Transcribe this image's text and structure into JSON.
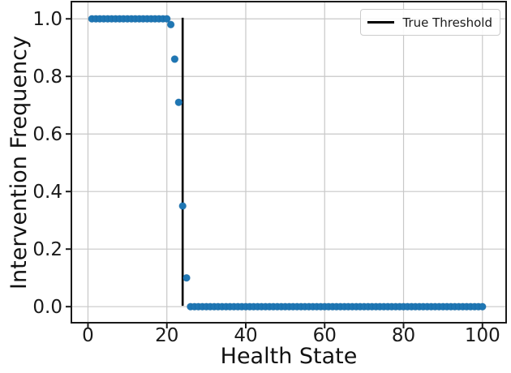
{
  "chart_data": {
    "type": "scatter",
    "title": "",
    "xlabel": "Health State",
    "ylabel": "Intervention Frequency",
    "xlim": [
      -4,
      105.8
    ],
    "ylim": [
      -0.053,
      1.057
    ],
    "x_ticks": [
      0,
      20,
      40,
      60,
      80,
      100
    ],
    "x_tick_labels": [
      "0",
      "20",
      "40",
      "60",
      "80",
      "100"
    ],
    "y_ticks": [
      0.0,
      0.2,
      0.4,
      0.6,
      0.8,
      1.0
    ],
    "y_tick_labels": [
      "0.0",
      "0.2",
      "0.4",
      "0.6",
      "0.8",
      "1.0"
    ],
    "grid": true,
    "legend": {
      "position": "upper right",
      "entries": [
        {
          "label": "True Threshold",
          "type": "line",
          "color": "#000000"
        }
      ]
    },
    "threshold_line": {
      "x": 24,
      "y_span": [
        0.003,
        1.004
      ],
      "color": "#000000"
    },
    "series": [
      {
        "name": "intervention-frequency",
        "type": "scatter",
        "color": "#1f77b4",
        "edge_color": "#14639f",
        "points": [
          [
            1,
            1.0
          ],
          [
            2,
            1.0
          ],
          [
            3,
            1.0
          ],
          [
            4,
            1.0
          ],
          [
            5,
            1.0
          ],
          [
            6,
            1.0
          ],
          [
            7,
            1.0
          ],
          [
            8,
            1.0
          ],
          [
            9,
            1.0
          ],
          [
            10,
            1.0
          ],
          [
            11,
            1.0
          ],
          [
            12,
            1.0
          ],
          [
            13,
            1.0
          ],
          [
            14,
            1.0
          ],
          [
            15,
            1.0
          ],
          [
            16,
            1.0
          ],
          [
            17,
            1.0
          ],
          [
            18,
            1.0
          ],
          [
            19,
            1.0
          ],
          [
            20,
            1.0
          ],
          [
            21,
            0.98
          ],
          [
            22,
            0.86
          ],
          [
            23,
            0.71
          ],
          [
            24,
            0.35
          ],
          [
            25,
            0.1
          ],
          [
            26,
            0.0
          ],
          [
            27,
            0.0
          ],
          [
            28,
            0.0
          ],
          [
            29,
            0.0
          ],
          [
            30,
            0.0
          ],
          [
            31,
            0.0
          ],
          [
            32,
            0.0
          ],
          [
            33,
            0.0
          ],
          [
            34,
            0.0
          ],
          [
            35,
            0.0
          ],
          [
            36,
            0.0
          ],
          [
            37,
            0.0
          ],
          [
            38,
            0.0
          ],
          [
            39,
            0.0
          ],
          [
            40,
            0.0
          ],
          [
            41,
            0.0
          ],
          [
            42,
            0.0
          ],
          [
            43,
            0.0
          ],
          [
            44,
            0.0
          ],
          [
            45,
            0.0
          ],
          [
            46,
            0.0
          ],
          [
            47,
            0.0
          ],
          [
            48,
            0.0
          ],
          [
            49,
            0.0
          ],
          [
            50,
            0.0
          ],
          [
            51,
            0.0
          ],
          [
            52,
            0.0
          ],
          [
            53,
            0.0
          ],
          [
            54,
            0.0
          ],
          [
            55,
            0.0
          ],
          [
            56,
            0.0
          ],
          [
            57,
            0.0
          ],
          [
            58,
            0.0
          ],
          [
            59,
            0.0
          ],
          [
            60,
            0.0
          ],
          [
            61,
            0.0
          ],
          [
            62,
            0.0
          ],
          [
            63,
            0.0
          ],
          [
            64,
            0.0
          ],
          [
            65,
            0.0
          ],
          [
            66,
            0.0
          ],
          [
            67,
            0.0
          ],
          [
            68,
            0.0
          ],
          [
            69,
            0.0
          ],
          [
            70,
            0.0
          ],
          [
            71,
            0.0
          ],
          [
            72,
            0.0
          ],
          [
            73,
            0.0
          ],
          [
            74,
            0.0
          ],
          [
            75,
            0.0
          ],
          [
            76,
            0.0
          ],
          [
            77,
            0.0
          ],
          [
            78,
            0.0
          ],
          [
            79,
            0.0
          ],
          [
            80,
            0.0
          ],
          [
            81,
            0.0
          ],
          [
            82,
            0.0
          ],
          [
            83,
            0.0
          ],
          [
            84,
            0.0
          ],
          [
            85,
            0.0
          ],
          [
            86,
            0.0
          ],
          [
            87,
            0.0
          ],
          [
            88,
            0.0
          ],
          [
            89,
            0.0
          ],
          [
            90,
            0.0
          ],
          [
            91,
            0.0
          ],
          [
            92,
            0.0
          ],
          [
            93,
            0.0
          ],
          [
            94,
            0.0
          ],
          [
            95,
            0.0
          ],
          [
            96,
            0.0
          ],
          [
            97,
            0.0
          ],
          [
            98,
            0.0
          ],
          [
            99,
            0.0
          ],
          [
            100,
            0.0
          ]
        ]
      }
    ],
    "style": {
      "grid_color": "#c8c8c8",
      "spine_color": "#1a1a1a",
      "tick_label_color": "#1a1a1a",
      "point_radius_px": 4.3,
      "background": "#ffffff"
    }
  }
}
